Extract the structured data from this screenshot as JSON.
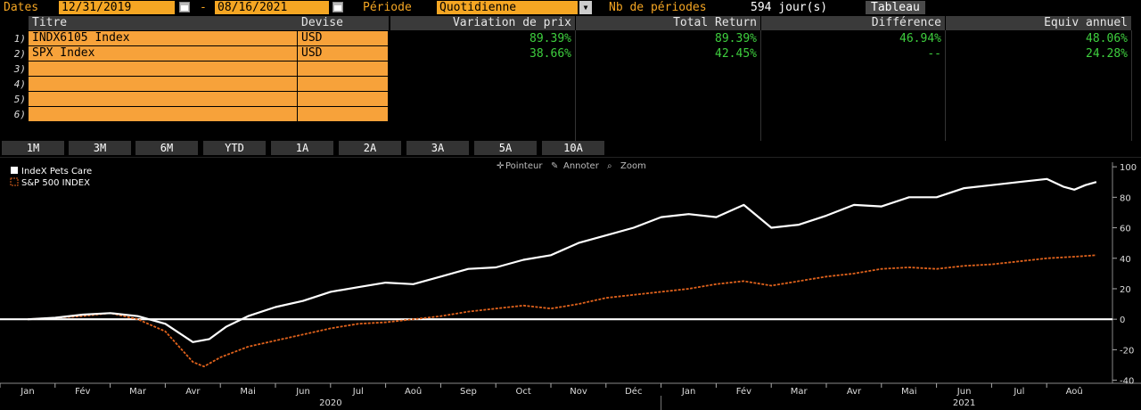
{
  "toolbar": {
    "dates_label": "Dates",
    "start_date": "12/31/2019",
    "dash": "-",
    "end_date": "08/16/2021",
    "period_label": "Période",
    "period_value": "Quotidienne",
    "periods_count_label": "Nb de périodes",
    "periods_count_value": "594 jour(s)",
    "table_button": "Tableau"
  },
  "table": {
    "headers": {
      "title": "Titre",
      "currency": "Devise",
      "price_change": "Variation de prix",
      "total_return": "Total Return",
      "difference": "Différence",
      "annual_equiv": "Equiv annuel"
    },
    "rows": [
      {
        "num": "1)",
        "title": "INDX6105 Index",
        "currency": "USD",
        "price_change": "89.39%",
        "total_return": "89.39%",
        "difference": "46.94%",
        "annual_equiv": "48.06%"
      },
      {
        "num": "2)",
        "title": "SPX Index",
        "currency": "USD",
        "price_change": "38.66%",
        "total_return": "42.45%",
        "difference": "--",
        "annual_equiv": "24.28%"
      },
      {
        "num": "3)",
        "title": "",
        "currency": "",
        "price_change": "",
        "total_return": "",
        "difference": "",
        "annual_equiv": ""
      },
      {
        "num": "4)",
        "title": "",
        "currency": "",
        "price_change": "",
        "total_return": "",
        "difference": "",
        "annual_equiv": ""
      },
      {
        "num": "5)",
        "title": "",
        "currency": "",
        "price_change": "",
        "total_return": "",
        "difference": "",
        "annual_equiv": ""
      },
      {
        "num": "6)",
        "title": "",
        "currency": "",
        "price_change": "",
        "total_return": "",
        "difference": "",
        "annual_equiv": ""
      }
    ]
  },
  "period_buttons": [
    "1M",
    "3M",
    "6M",
    "YTD",
    "1A",
    "2A",
    "3A",
    "5A",
    "10A"
  ],
  "chart_tools": {
    "pointer": "Pointeur",
    "annotate": "Annoter",
    "zoom": "Zoom"
  },
  "colors": {
    "amber": "#f5a623",
    "orange_cell": "#f7a23a",
    "green_value": "#3ecf3e",
    "series1": "#ffffff",
    "series2": "#e0621c"
  },
  "chart_data": {
    "type": "line",
    "legend_position": "top-left",
    "grid": false,
    "ylim": [
      -42,
      103
    ],
    "yticks": [
      100,
      80,
      60,
      40,
      20,
      0,
      -20,
      -40
    ],
    "xlim": [
      0,
      19.5
    ],
    "month_ticks": [
      "Jan",
      "Fév",
      "Mar",
      "Avr",
      "Mai",
      "Jun",
      "Jul",
      "Aoû",
      "Sep",
      "Oct",
      "Nov",
      "Déc",
      "Jan",
      "Fév",
      "Mar",
      "Avr",
      "Mai",
      "Jun",
      "Jul",
      "Aoû"
    ],
    "year_labels": [
      {
        "label": "2020",
        "at": 6
      },
      {
        "label": "2021",
        "at": 17.5
      }
    ],
    "zero_line": 0,
    "series": [
      {
        "name": "IndeX Pets Care",
        "color": "#ffffff",
        "style": "solid",
        "x": [
          0,
          0.5,
          1,
          1.5,
          2,
          2.5,
          3,
          3.3,
          3.6,
          4,
          4.5,
          5,
          5.5,
          6,
          6.5,
          7,
          7.5,
          8,
          8.5,
          9,
          9.5,
          10,
          10.5,
          11,
          11.5,
          12,
          12.5,
          13,
          13.5,
          14,
          14.5,
          15,
          15.5,
          16,
          16.5,
          17,
          17.5,
          18,
          18.5,
          18.8,
          19,
          19.2,
          19.4
        ],
        "values": [
          0,
          1,
          3,
          4,
          2,
          -3,
          -15,
          -13,
          -5,
          2,
          8,
          12,
          18,
          21,
          24,
          23,
          28,
          33,
          34,
          39,
          42,
          50,
          55,
          60,
          67,
          69,
          67,
          75,
          60,
          62,
          68,
          75,
          74,
          80,
          80,
          86,
          88,
          90,
          92,
          87,
          85,
          88,
          90
        ]
      },
      {
        "name": "S&P 500 INDEX",
        "color": "#e0621c",
        "style": "dashed",
        "x": [
          0,
          0.5,
          1,
          1.5,
          2,
          2.5,
          2.8,
          3,
          3.2,
          3.5,
          4,
          4.5,
          5,
          5.5,
          6,
          6.5,
          7,
          7.5,
          8,
          8.5,
          9,
          9.5,
          10,
          10.5,
          11,
          11.5,
          12,
          12.5,
          13,
          13.5,
          14,
          14.5,
          15,
          15.5,
          16,
          16.5,
          17,
          17.5,
          18,
          18.5,
          19,
          19.4
        ],
        "values": [
          0,
          1,
          2,
          4,
          0,
          -8,
          -20,
          -28,
          -31,
          -25,
          -18,
          -14,
          -10,
          -6,
          -3,
          -2,
          0,
          2,
          5,
          7,
          9,
          7,
          10,
          14,
          16,
          18,
          20,
          23,
          25,
          22,
          25,
          28,
          30,
          33,
          34,
          33,
          35,
          36,
          38,
          40,
          41,
          42
        ]
      }
    ]
  }
}
